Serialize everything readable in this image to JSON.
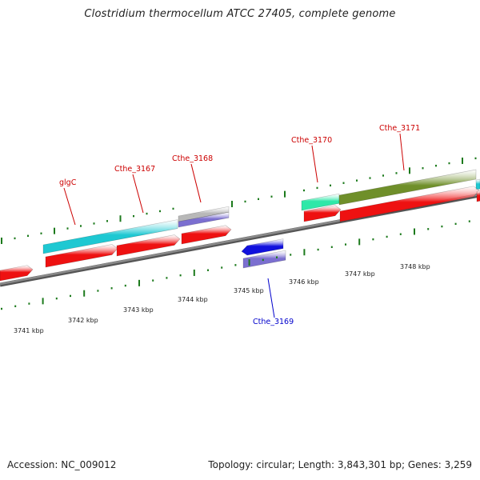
{
  "title": "Clostridium thermocellum ATCC 27405, complete genome",
  "footer": {
    "accession": "Accession: NC_009012",
    "summary": "Topology: circular; Length: 3,843,301 bp; Genes: 3,259"
  },
  "colors": {
    "backbone": "#8a8a8a",
    "forward_gene": "#ee1111",
    "reverse_gene": "#1111dd",
    "cyan_feature": "#1ec8d2",
    "lavender_feature": "#7b6fd0",
    "mint_feature": "#2fe8a8",
    "olive_feature": "#6f8f2a",
    "gray_feature": "#b8b8b8",
    "tick": "#1c7a1c",
    "label_forward": "#cc0000",
    "label_reverse": "#0000cc"
  },
  "scale": {
    "unit": "kbp",
    "ticks": [
      3741,
      3742,
      3743,
      3744,
      3745,
      3746,
      3747,
      3748
    ]
  },
  "genes": [
    {
      "name": "glgC",
      "strand": "forward"
    },
    {
      "name": "Cthe_3167",
      "strand": "forward"
    },
    {
      "name": "Cthe_3168",
      "strand": "forward"
    },
    {
      "name": "Cthe_3169",
      "strand": "reverse"
    },
    {
      "name": "Cthe_3170",
      "strand": "forward"
    },
    {
      "name": "Cthe_3171",
      "strand": "forward"
    }
  ]
}
